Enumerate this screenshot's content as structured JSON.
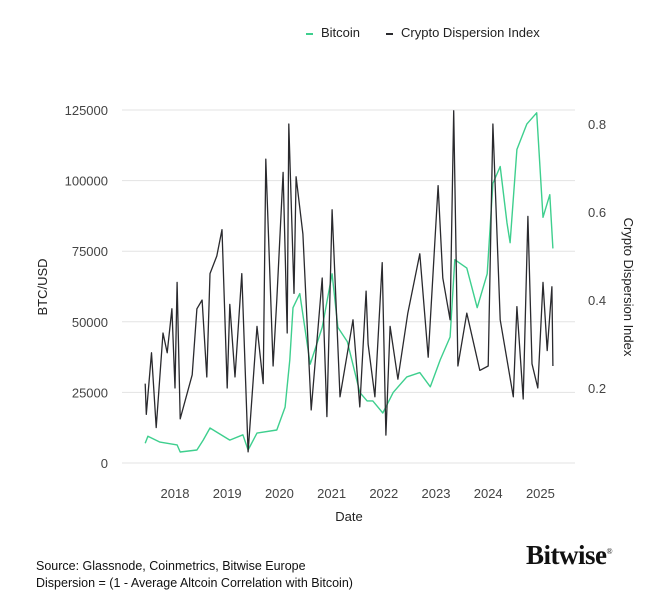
{
  "chart_data": {
    "type": "line",
    "xlabel": "Date",
    "ylabel": "BTC/USD",
    "y2label": "Crypto Dispersion Index",
    "x_ticks": [
      2018,
      2019,
      2020,
      2021,
      2022,
      2023,
      2024,
      2025
    ],
    "x_range": [
      2017.2,
      2025.5
    ],
    "y_ticks": [
      0,
      25000,
      50000,
      75000,
      100000,
      125000
    ],
    "y_range": [
      0,
      125000
    ],
    "y2_ticks": [
      0.2,
      0.4,
      0.6,
      0.8
    ],
    "y2_range": [
      0.03,
      0.83
    ],
    "grid": "horizontal",
    "legend": "top-right",
    "series": [
      {
        "name": "Bitcoin",
        "axis": "left",
        "color": "#3ecf8e",
        "x": [
          2017.43,
          2017.48,
          2017.71,
          2018.04,
          2018.1,
          2018.42,
          2018.54,
          2018.67,
          2019.05,
          2019.3,
          2019.4,
          2019.57,
          2019.95,
          2020.11,
          2020.2,
          2020.26,
          2020.39,
          2020.59,
          2020.82,
          2021.01,
          2021.12,
          2021.3,
          2021.54,
          2021.68,
          2021.79,
          2021.98,
          2022.18,
          2022.44,
          2022.69,
          2022.89,
          2023.08,
          2023.27,
          2023.36,
          2023.59,
          2023.79,
          2023.98,
          2024.09,
          2024.23,
          2024.36,
          2024.42,
          2024.55,
          2024.74,
          2024.93,
          2025.05,
          2025.18,
          2025.24
        ],
        "y": [
          7000,
          9500,
          7400,
          6400,
          3900,
          4600,
          8100,
          12400,
          8100,
          10000,
          4600,
          10600,
          11700,
          19800,
          36500,
          55000,
          60000,
          35000,
          48000,
          67000,
          48000,
          43000,
          25000,
          22000,
          22000,
          17700,
          25000,
          30500,
          32000,
          27000,
          36500,
          44600,
          72000,
          69000,
          55000,
          67000,
          99000,
          105000,
          85000,
          78000,
          111000,
          120000,
          124000,
          87000,
          95000,
          76000
        ]
      },
      {
        "name": "Crypto Dispersion Index",
        "axis": "right",
        "color": "#2a2a2e",
        "x": [
          2017.43,
          2017.45,
          2017.55,
          2017.64,
          2017.77,
          2017.85,
          2017.94,
          2018.0,
          2018.04,
          2018.1,
          2018.33,
          2018.42,
          2018.52,
          2018.61,
          2018.67,
          2018.8,
          2018.9,
          2019.0,
          2019.05,
          2019.15,
          2019.28,
          2019.4,
          2019.57,
          2019.69,
          2019.74,
          2019.88,
          2019.95,
          2020.07,
          2020.15,
          2020.18,
          2020.28,
          2020.32,
          2020.45,
          2020.61,
          2020.82,
          2020.91,
          2021.01,
          2021.16,
          2021.41,
          2021.54,
          2021.66,
          2021.7,
          2021.83,
          2021.97,
          2022.04,
          2022.12,
          2022.27,
          2022.46,
          2022.69,
          2022.85,
          2023.04,
          2023.13,
          2023.27,
          2023.34,
          2023.42,
          2023.59,
          2023.84,
          2024.0,
          2024.09,
          2024.23,
          2024.48,
          2024.55,
          2024.67,
          2024.76,
          2024.84,
          2024.95,
          2025.05,
          2025.13,
          2025.22,
          2025.24
        ],
        "y": [
          0.21,
          0.14,
          0.28,
          0.11,
          0.325,
          0.28,
          0.38,
          0.2,
          0.44,
          0.13,
          0.23,
          0.38,
          0.4,
          0.225,
          0.46,
          0.5,
          0.56,
          0.2,
          0.39,
          0.225,
          0.46,
          0.055,
          0.34,
          0.21,
          0.72,
          0.25,
          0.4,
          0.69,
          0.325,
          0.8,
          0.415,
          0.68,
          0.55,
          0.15,
          0.45,
          0.135,
          0.605,
          0.18,
          0.355,
          0.157,
          0.42,
          0.3,
          0.18,
          0.485,
          0.093,
          0.34,
          0.22,
          0.37,
          0.505,
          0.27,
          0.66,
          0.45,
          0.355,
          0.83,
          0.25,
          0.37,
          0.24,
          0.25,
          0.8,
          0.355,
          0.18,
          0.385,
          0.175,
          0.59,
          0.255,
          0.2,
          0.44,
          0.285,
          0.43,
          0.25
        ]
      }
    ]
  },
  "legend": {
    "items": [
      "Bitcoin",
      "Crypto Dispersion Index"
    ]
  },
  "footer": {
    "source": "Source: Glassnode, Coinmetrics, Bitwise Europe",
    "note": "Dispersion = (1 - Average Altcoin Correlation with Bitcoin)",
    "logo": "Bitwise"
  }
}
